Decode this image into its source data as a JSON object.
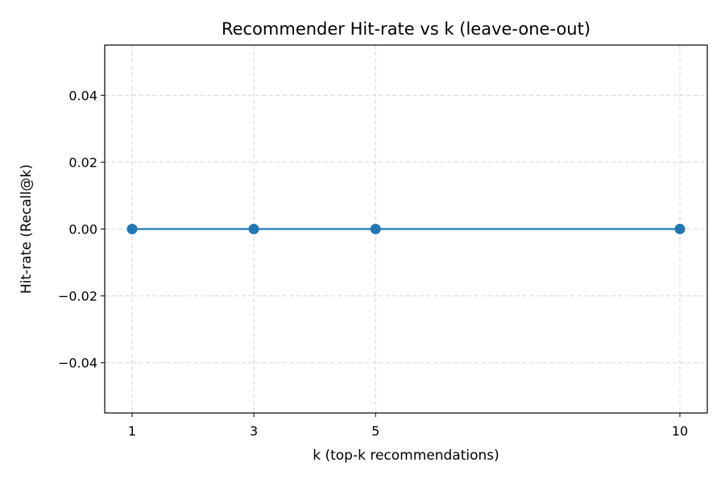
{
  "chart_data": {
    "type": "line",
    "title": "Recommender Hit-rate vs k (leave-one-out)",
    "xlabel": "k (top-k recommendations)",
    "ylabel": "Hit-rate (Recall@k)",
    "xlim": [
      0.55,
      10.45
    ],
    "ylim": [
      -0.055,
      0.055
    ],
    "x_ticks": [
      1,
      3,
      5,
      10
    ],
    "x_tick_labels": [
      "1",
      "3",
      "5",
      "10"
    ],
    "y_ticks": [
      -0.04,
      -0.02,
      0.0,
      0.02,
      0.04
    ],
    "y_tick_labels": [
      "−0.04",
      "−0.02",
      "0.00",
      "0.02",
      "0.04"
    ],
    "grid": true,
    "series": [
      {
        "x": [
          1,
          3,
          5,
          10
        ],
        "values": [
          0.0,
          0.0,
          0.0,
          0.0
        ],
        "color": "#1f77b4",
        "marker": "circle"
      }
    ]
  }
}
